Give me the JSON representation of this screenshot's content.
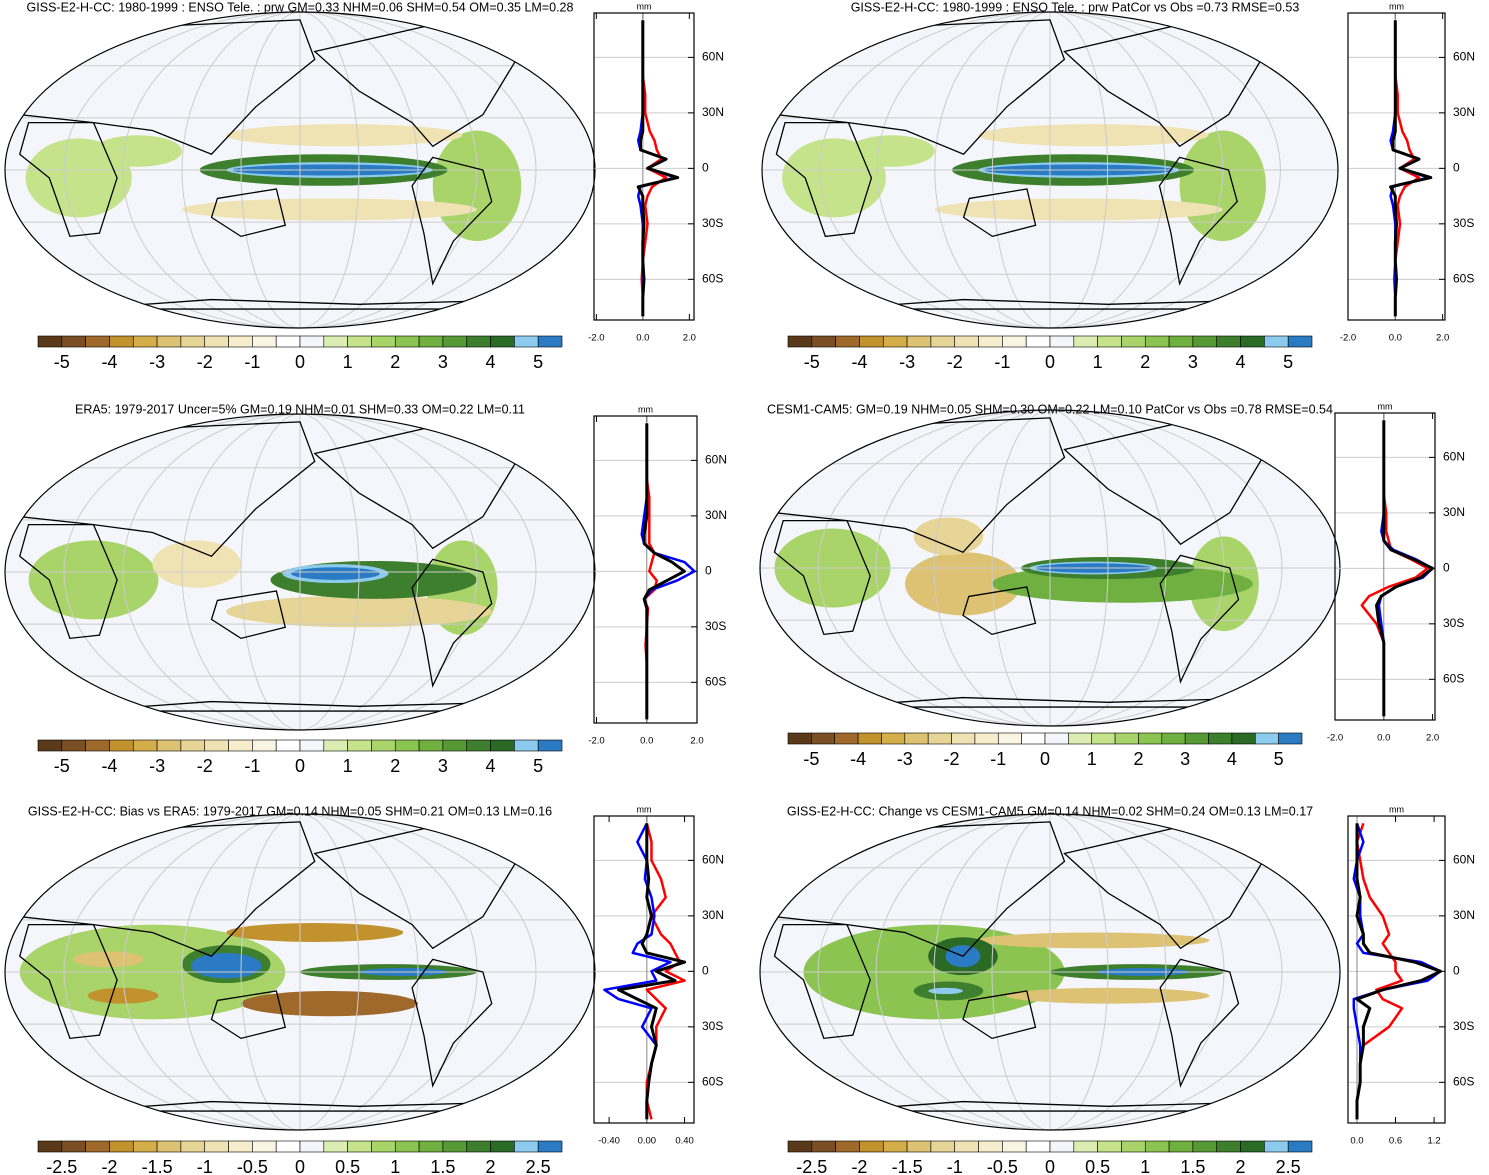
{
  "colorbar_colors": [
    "#5a3a1a",
    "#7a4f24",
    "#a0692c",
    "#c1922e",
    "#d4ae48",
    "#dcc272",
    "#e6d596",
    "#efe3b4",
    "#f5edcc",
    "#faf5e2",
    "#ffffff",
    "#f4f6fb",
    "#dcedb4",
    "#c4e38a",
    "#a8d46a",
    "#8cc452",
    "#6fb040",
    "#559a35",
    "#3d7f2c",
    "#2a6a25",
    "#8dcbee",
    "#2b7bc4"
  ],
  "chart_data": [
    {
      "type": "line",
      "title": "GISS-E2-H-CC: 1980-1999 : ENSO Tele. : prw GM=0.33 NHM=0.06 SHM=0.54 OM=0.35 LM=0.28",
      "xlabel": "mm",
      "y": [
        -80,
        -70,
        -60,
        -50,
        -40,
        -30,
        -20,
        -15,
        -10,
        -5,
        0,
        5,
        10,
        15,
        20,
        30,
        40,
        50,
        60,
        70,
        80
      ],
      "series": [
        {
          "color": "#ff0000",
          "values": [
            0,
            0,
            -0.05,
            0,
            0.1,
            0.2,
            0.1,
            0.2,
            0.4,
            1.0,
            0.2,
            0.8,
            0.6,
            0.5,
            0.3,
            0.1,
            0.1,
            0,
            0,
            0,
            0
          ]
        },
        {
          "color": "#0000ff",
          "values": [
            0,
            0,
            0,
            0,
            0,
            0,
            -0.1,
            -0.2,
            -0.1,
            1.4,
            0.2,
            1.0,
            -0.1,
            -0.2,
            -0.1,
            0,
            0,
            0,
            0,
            0,
            0
          ]
        },
        {
          "color": "#000000",
          "values": [
            0,
            0,
            0.05,
            0,
            0,
            0.05,
            0,
            0,
            -0.2,
            1.5,
            0.2,
            1.0,
            -0.1,
            -0.1,
            0,
            0,
            0,
            0,
            0,
            0,
            0
          ]
        }
      ],
      "xlim": [
        -2.1,
        2.2
      ],
      "xticks": [
        {
          "value": -2,
          "label": "-2.0"
        },
        {
          "value": 0,
          "label": "0.0"
        },
        {
          "value": 2,
          "label": "2.0"
        }
      ],
      "ylim": [
        -82,
        84
      ],
      "yticks": [
        {
          "value": 60,
          "label": "60N"
        },
        {
          "value": 30,
          "label": "30N"
        },
        0,
        {
          "value": -30,
          "label": "30S"
        },
        {
          "value": -60,
          "label": "60S"
        }
      ],
      "colorbar_lim": [
        -5.5,
        5.5
      ],
      "colorbar_ticks": [
        -5,
        -4,
        -3,
        -2,
        -1,
        0,
        1,
        2,
        3,
        4,
        5
      ]
    },
    {
      "type": "line",
      "title": "GISS-E2-H-CC: 1980-1999 : ENSO Tele. : prw PatCor vs Obs =0.73 RMSE=0.53",
      "xlabel": "mm",
      "y": [
        -80,
        -70,
        -60,
        -50,
        -40,
        -30,
        -20,
        -15,
        -10,
        -5,
        0,
        5,
        10,
        15,
        20,
        30,
        40,
        50,
        60,
        70,
        80
      ],
      "series": [
        {
          "color": "#ff0000",
          "values": [
            0,
            0,
            -0.05,
            0,
            0.1,
            0.2,
            0.1,
            0.2,
            0.4,
            1.0,
            0.2,
            0.8,
            0.6,
            0.5,
            0.3,
            0.1,
            0.1,
            0,
            0,
            0,
            0
          ]
        },
        {
          "color": "#0000ff",
          "values": [
            0,
            0,
            0,
            0,
            0,
            0,
            -0.1,
            -0.2,
            -0.1,
            1.4,
            0.2,
            1.0,
            -0.1,
            -0.2,
            -0.1,
            0,
            0,
            0,
            0,
            0,
            0
          ]
        },
        {
          "color": "#000000",
          "values": [
            0,
            0,
            0.05,
            0,
            0,
            0.05,
            0,
            0,
            -0.2,
            1.5,
            0.2,
            1.0,
            -0.1,
            -0.1,
            0,
            0,
            0,
            0,
            0,
            0,
            0
          ]
        }
      ],
      "xlim": [
        -2.0,
        2.1
      ],
      "xticks": [
        {
          "value": -2,
          "label": "-2.0"
        },
        {
          "value": 0,
          "label": "0.0"
        },
        {
          "value": 2,
          "label": "2.0"
        }
      ],
      "ylim": [
        -82,
        84
      ],
      "yticks": [
        {
          "value": 60,
          "label": "60N"
        },
        {
          "value": 30,
          "label": "30N"
        },
        0,
        {
          "value": -30,
          "label": "30S"
        },
        {
          "value": -60,
          "label": "60S"
        }
      ],
      "colorbar_lim": [
        -5.5,
        5.5
      ],
      "colorbar_ticks": [
        -5,
        -4,
        -3,
        -2,
        -1,
        0,
        1,
        2,
        3,
        4,
        5
      ]
    },
    {
      "type": "line",
      "title": "ERA5: 1979-2017 Uncer=5% GM=0.19 NHM=0.01 SHM=0.33 OM=0.22 LM=0.11",
      "xlabel": "mm",
      "y": [
        -80,
        -70,
        -60,
        -50,
        -40,
        -30,
        -20,
        -15,
        -10,
        -5,
        0,
        5,
        10,
        15,
        20,
        30,
        40,
        50,
        60,
        70,
        80
      ],
      "series": [
        {
          "color": "#ff0000",
          "values": [
            0,
            0,
            0,
            0,
            -0.05,
            0,
            0.05,
            -0.1,
            0.3,
            0.4,
            0.1,
            0.2,
            0.3,
            0.1,
            0.1,
            0.1,
            0.1,
            0,
            0,
            0,
            0
          ]
        },
        {
          "color": "#0000ff",
          "values": [
            0,
            0,
            0,
            0,
            0,
            0,
            0,
            -0.1,
            0.2,
            1.2,
            1.9,
            1.5,
            0.3,
            -0.1,
            -0.2,
            -0.1,
            0,
            0,
            0,
            0,
            0
          ]
        },
        {
          "color": "#000000",
          "values": [
            0,
            0,
            0,
            0,
            0,
            0,
            0,
            -0.1,
            0.1,
            0.8,
            1.5,
            1.0,
            0.3,
            -0.1,
            -0.1,
            0,
            0,
            0,
            0,
            0,
            0
          ]
        }
      ],
      "xlim": [
        -2.1,
        2.0
      ],
      "xticks": [
        {
          "value": -2,
          "label": "-2.0"
        },
        {
          "value": 0,
          "label": "0.0"
        },
        {
          "value": 2,
          "label": "2.0"
        }
      ],
      "ylim": [
        -82,
        84
      ],
      "yticks": [
        {
          "value": 60,
          "label": "60N"
        },
        {
          "value": 30,
          "label": "30N"
        },
        0,
        {
          "value": -30,
          "label": "30S"
        },
        {
          "value": -60,
          "label": "60S"
        }
      ],
      "colorbar_lim": [
        -5.5,
        5.5
      ],
      "colorbar_ticks": [
        -5,
        -4,
        -3,
        -2,
        -1,
        0,
        1,
        2,
        3,
        4,
        5
      ]
    },
    {
      "type": "line",
      "title": "CESM1-CAM5: GM=0.19 NHM=0.05 SHM=0.30 OM=0.22 LM=0.10 PatCor vs Obs =0.78 RMSE=0.54",
      "xlabel": "mm",
      "y": [
        -80,
        -70,
        -60,
        -50,
        -40,
        -30,
        -20,
        -15,
        -10,
        -5,
        0,
        5,
        10,
        15,
        20,
        30,
        40,
        50,
        60,
        70,
        80
      ],
      "series": [
        {
          "color": "#ff0000",
          "values": [
            0,
            0,
            0,
            0,
            0,
            -0.3,
            -0.9,
            -0.6,
            0.2,
            1.3,
            1.8,
            1.1,
            0.3,
            0.2,
            0.1,
            0.1,
            0,
            0,
            0,
            0,
            0
          ]
        },
        {
          "color": "#0000ff",
          "values": [
            0,
            0,
            0,
            0,
            0,
            -0.1,
            -0.2,
            -0.1,
            0.5,
            1.6,
            2.0,
            1.3,
            0.4,
            0,
            -0.1,
            0,
            0,
            0,
            0,
            0,
            0
          ]
        },
        {
          "color": "#000000",
          "values": [
            0,
            0,
            0,
            0,
            0,
            -0.2,
            -0.3,
            -0.1,
            0.5,
            1.5,
            2.0,
            1.2,
            0.3,
            0,
            0,
            0,
            0,
            0,
            0,
            0,
            0
          ]
        }
      ],
      "xlim": [
        -2.0,
        2.1
      ],
      "xticks": [
        {
          "value": -2,
          "label": "-2.0"
        },
        {
          "value": 0,
          "label": "0.0"
        },
        {
          "value": 2,
          "label": "2.0"
        }
      ],
      "ylim": [
        -82,
        84
      ],
      "yticks": [
        {
          "value": 60,
          "label": "60N"
        },
        {
          "value": 30,
          "label": "30N"
        },
        0,
        {
          "value": -30,
          "label": "30S"
        },
        {
          "value": -60,
          "label": "60S"
        }
      ],
      "colorbar_lim": [
        -5.5,
        5.5
      ],
      "colorbar_ticks": [
        -5,
        -4,
        -3,
        -2,
        -1,
        0,
        1,
        2,
        3,
        4,
        5
      ]
    },
    {
      "type": "line",
      "title": "GISS-E2-H-CC: Bias vs ERA5: 1979-2017 GM=0.14 NHM=0.05 SHM=0.21 OM=0.13 LM=0.16",
      "xlabel": "mm",
      "y": [
        -80,
        -70,
        -60,
        -50,
        -40,
        -30,
        -20,
        -15,
        -10,
        -5,
        0,
        5,
        10,
        15,
        20,
        30,
        40,
        50,
        60,
        70,
        80
      ],
      "series": [
        {
          "color": "#ff0000",
          "values": [
            0.05,
            0,
            0,
            0.05,
            0.1,
            0.1,
            0.2,
            0.1,
            0,
            0.4,
            0.2,
            0.35,
            0.3,
            0.25,
            0.15,
            0.05,
            0.2,
            0.15,
            0.05,
            0.05,
            0
          ]
        },
        {
          "color": "#0000ff",
          "values": [
            0,
            0,
            0.02,
            0.05,
            0.1,
            -0.05,
            0.05,
            -0.3,
            -0.45,
            0.1,
            0.05,
            0.25,
            -0.15,
            -0.1,
            0.05,
            0.08,
            0.05,
            -0.02,
            0,
            -0.1,
            0
          ]
        },
        {
          "color": "#000000",
          "values": [
            0,
            0,
            0.02,
            0.05,
            0.1,
            0.05,
            0.1,
            -0.1,
            -0.3,
            0.3,
            0.1,
            0.4,
            0,
            -0.05,
            0,
            0.05,
            0,
            0.02,
            0,
            0,
            0
          ]
        }
      ],
      "xlim": [
        -0.56,
        0.5
      ],
      "xticks": [
        {
          "value": -0.4,
          "label": "-0.40"
        },
        {
          "value": 0,
          "label": "0.00"
        },
        {
          "value": 0.4,
          "label": "0.40"
        }
      ],
      "ylim": [
        -82,
        84
      ],
      "yticks": [
        {
          "value": 60,
          "label": "60N"
        },
        {
          "value": 30,
          "label": "30N"
        },
        0,
        {
          "value": -30,
          "label": "30S"
        },
        {
          "value": -60,
          "label": "60S"
        }
      ],
      "colorbar_lim": [
        -2.75,
        2.75
      ],
      "colorbar_ticks": [
        -2.5,
        -2,
        -1.5,
        -1,
        -0.5,
        0,
        0.5,
        1,
        1.5,
        2,
        2.5
      ]
    },
    {
      "type": "line",
      "title": "GISS-E2-H-CC: Change vs CESM1-CAM5 GM=0.14 NHM=0.02 SHM=0.24 OM=0.13 LM=0.17",
      "xlabel": "mm",
      "y": [
        -80,
        -70,
        -60,
        -50,
        -40,
        -30,
        -20,
        -15,
        -10,
        -5,
        0,
        5,
        10,
        15,
        20,
        30,
        40,
        50,
        60,
        70,
        80
      ],
      "series": [
        {
          "color": "#ff0000",
          "values": [
            0,
            0,
            0.05,
            0.05,
            0.1,
            0.5,
            0.7,
            0.4,
            0.3,
            0.7,
            0.6,
            0.6,
            0.5,
            0.4,
            0.5,
            0.4,
            0.2,
            0.1,
            0.05,
            0,
            0.1
          ]
        },
        {
          "color": "#0000ff",
          "values": [
            0,
            0,
            0.05,
            0.05,
            0.05,
            0,
            -0.05,
            -0.05,
            0.4,
            1.1,
            1.3,
            1,
            0.1,
            0,
            0.1,
            0.05,
            0.05,
            -0.05,
            0,
            0.1,
            0
          ]
        },
        {
          "color": "#000000",
          "values": [
            0,
            0,
            0.05,
            0.05,
            0.1,
            0.1,
            0.2,
            0,
            0.4,
            1,
            1.3,
            0.9,
            0.2,
            0.1,
            0.1,
            0,
            0.05,
            0,
            0,
            0,
            0
          ]
        }
      ],
      "xlim": [
        -0.14,
        1.37
      ],
      "xticks": [
        {
          "value": 0,
          "label": "0.0"
        },
        {
          "value": 0.6,
          "label": "0.6"
        },
        {
          "value": 1.2,
          "label": "1.2"
        }
      ],
      "ylim": [
        -82,
        84
      ],
      "yticks": [
        {
          "value": 60,
          "label": "60N"
        },
        {
          "value": 30,
          "label": "30N"
        },
        0,
        {
          "value": -30,
          "label": "30S"
        },
        {
          "value": -60,
          "label": "60S"
        }
      ],
      "colorbar_lim": [
        -2.75,
        2.75
      ],
      "colorbar_ticks": [
        -2.5,
        -2,
        -1.5,
        -1,
        -0.5,
        0,
        0.5,
        1,
        1.5,
        2,
        2.5
      ]
    }
  ]
}
